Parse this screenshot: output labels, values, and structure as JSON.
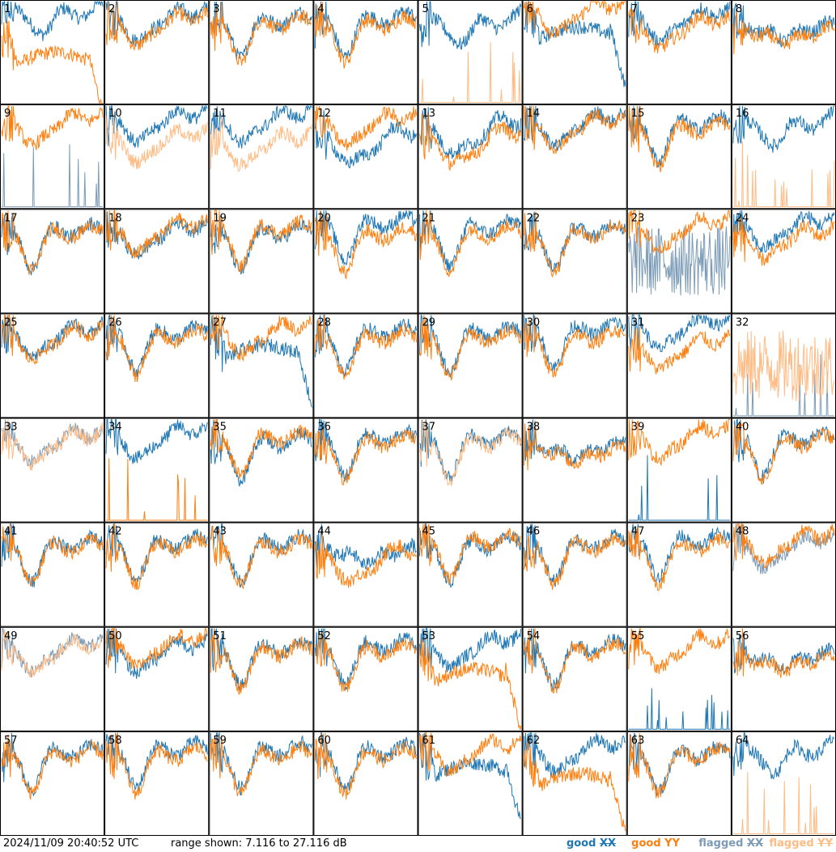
{
  "timestamp": "2024/11/09 20:40:52 UTC",
  "range": {
    "prefix": "range shown:",
    "min": "7.116",
    "sep": "to",
    "max": "27.116",
    "unit": "dB",
    "min_db": 7.116,
    "max_db": 27.116
  },
  "legend": {
    "good_xx": {
      "word": "good",
      "pol": "XX",
      "color": "#1f77b4"
    },
    "good_yy": {
      "word": "good",
      "pol": "YY",
      "color": "#ff7f0e"
    },
    "flagged_xx": {
      "word": "flagged",
      "pol": "XX",
      "color": "#7b9bb6"
    },
    "flagged_yy": {
      "word": "flagged",
      "pol": "YY",
      "color": "#ffbb84"
    }
  },
  "chart_data": {
    "type": "line",
    "layout": "8x8 grid of small-multiple spectra",
    "ylim_db": [
      7.116,
      27.116
    ],
    "grid": false,
    "legend_position": "bottom-right",
    "shapes": [
      "A",
      "B",
      "C",
      "D",
      "E",
      "F"
    ],
    "panels": [
      {
        "label": "1",
        "xx": {
          "s": "A",
          "o": 0.12,
          "st": "good"
        },
        "yy": {
          "s": "F",
          "o": -0.1,
          "st": "good"
        }
      },
      {
        "label": "2",
        "xx": {
          "s": "B",
          "o": 0.05,
          "st": "good"
        },
        "yy": {
          "s": "B",
          "o": 0.0,
          "st": "good"
        }
      },
      {
        "label": "3",
        "xx": {
          "s": "C",
          "o": 0.04,
          "st": "good"
        },
        "yy": {
          "s": "C",
          "o": 0.0,
          "st": "good"
        }
      },
      {
        "label": "4",
        "xx": {
          "s": "C",
          "o": 0.05,
          "st": "good"
        },
        "yy": {
          "s": "C",
          "o": 0.0,
          "st": "good"
        }
      },
      {
        "label": "5",
        "xx": {
          "s": "A",
          "o": 0.02,
          "st": "good"
        },
        "yy": {
          "s": "S",
          "o": 0.0,
          "st": "flagged"
        }
      },
      {
        "label": "6",
        "xx": {
          "s": "F",
          "o": 0.15,
          "st": "good"
        },
        "yy": {
          "s": "B",
          "o": 0.12,
          "st": "good"
        }
      },
      {
        "label": "7",
        "xx": {
          "s": "B",
          "o": 0.05,
          "st": "good"
        },
        "yy": {
          "s": "B",
          "o": -0.03,
          "st": "good"
        }
      },
      {
        "label": "8",
        "xx": {
          "s": "D",
          "o": 0.05,
          "st": "good"
        },
        "yy": {
          "s": "D",
          "o": 0.0,
          "st": "good"
        }
      },
      {
        "label": "9",
        "xx": {
          "s": "S",
          "o": 0.0,
          "st": "flagged"
        },
        "yy": {
          "s": "B",
          "o": 0.05,
          "st": "good"
        }
      },
      {
        "label": "10",
        "xx": {
          "s": "B",
          "o": 0.08,
          "st": "good"
        },
        "yy": {
          "s": "B",
          "o": -0.12,
          "st": "flagged"
        }
      },
      {
        "label": "11",
        "xx": {
          "s": "B",
          "o": 0.08,
          "st": "good"
        },
        "yy": {
          "s": "B",
          "o": -0.15,
          "st": "flagged"
        }
      },
      {
        "label": "12",
        "xx": {
          "s": "E",
          "o": 0.0,
          "st": "good"
        },
        "yy": {
          "s": "B",
          "o": 0.05,
          "st": "good"
        }
      },
      {
        "label": "13",
        "xx": {
          "s": "E",
          "o": 0.1,
          "st": "good"
        },
        "yy": {
          "s": "E",
          "o": 0.0,
          "st": "good"
        }
      },
      {
        "label": "14",
        "xx": {
          "s": "B",
          "o": 0.05,
          "st": "good"
        },
        "yy": {
          "s": "B",
          "o": 0.03,
          "st": "good"
        }
      },
      {
        "label": "15",
        "xx": {
          "s": "C",
          "o": 0.05,
          "st": "good"
        },
        "yy": {
          "s": "C",
          "o": 0.0,
          "st": "good"
        }
      },
      {
        "label": "16",
        "xx": {
          "s": "A",
          "o": 0.05,
          "st": "good"
        },
        "yy": {
          "s": "S",
          "o": 0.0,
          "st": "flagged"
        }
      },
      {
        "label": "17",
        "xx": {
          "s": "C",
          "o": 0.02,
          "st": "good"
        },
        "yy": {
          "s": "C",
          "o": 0.0,
          "st": "good"
        }
      },
      {
        "label": "18",
        "xx": {
          "s": "B",
          "o": 0.0,
          "st": "good"
        },
        "yy": {
          "s": "B",
          "o": 0.03,
          "st": "good"
        }
      },
      {
        "label": "19",
        "xx": {
          "s": "C",
          "o": 0.0,
          "st": "good"
        },
        "yy": {
          "s": "C",
          "o": 0.04,
          "st": "good"
        }
      },
      {
        "label": "20",
        "xx": {
          "s": "C",
          "o": 0.1,
          "st": "good"
        },
        "yy": {
          "s": "C",
          "o": -0.02,
          "st": "good"
        }
      },
      {
        "label": "21",
        "xx": {
          "s": "C",
          "o": 0.05,
          "st": "good"
        },
        "yy": {
          "s": "C",
          "o": 0.0,
          "st": "good"
        }
      },
      {
        "label": "22",
        "xx": {
          "s": "C",
          "o": 0.02,
          "st": "good"
        },
        "yy": {
          "s": "C",
          "o": 0.0,
          "st": "good"
        }
      },
      {
        "label": "23",
        "xx": {
          "s": "N",
          "o": 0.0,
          "st": "flagged"
        },
        "yy": {
          "s": "B",
          "o": 0.05,
          "st": "good"
        }
      },
      {
        "label": "24",
        "xx": {
          "s": "B",
          "o": 0.06,
          "st": "good"
        },
        "yy": {
          "s": "B",
          "o": -0.05,
          "st": "good"
        }
      },
      {
        "label": "25",
        "xx": {
          "s": "B",
          "o": 0.02,
          "st": "good"
        },
        "yy": {
          "s": "B",
          "o": 0.0,
          "st": "good"
        }
      },
      {
        "label": "26",
        "xx": {
          "s": "C",
          "o": 0.04,
          "st": "good"
        },
        "yy": {
          "s": "C",
          "o": 0.0,
          "st": "good"
        }
      },
      {
        "label": "27",
        "xx": {
          "s": "F",
          "o": 0.1,
          "st": "good"
        },
        "yy": {
          "s": "B",
          "o": 0.05,
          "st": "good"
        }
      },
      {
        "label": "28",
        "xx": {
          "s": "C",
          "o": 0.05,
          "st": "good"
        },
        "yy": {
          "s": "C",
          "o": 0.0,
          "st": "good"
        }
      },
      {
        "label": "29",
        "xx": {
          "s": "C",
          "o": 0.04,
          "st": "good"
        },
        "yy": {
          "s": "C",
          "o": 0.0,
          "st": "good"
        }
      },
      {
        "label": "30",
        "xx": {
          "s": "C",
          "o": 0.08,
          "st": "good"
        },
        "yy": {
          "s": "C",
          "o": 0.0,
          "st": "good"
        }
      },
      {
        "label": "31",
        "xx": {
          "s": "B",
          "o": 0.1,
          "st": "good"
        },
        "yy": {
          "s": "B",
          "o": -0.1,
          "st": "good"
        }
      },
      {
        "label": "32",
        "xx": {
          "s": "S",
          "o": 0.0,
          "st": "flagged"
        },
        "yy": {
          "s": "N",
          "o": 0.05,
          "st": "flagged"
        }
      },
      {
        "label": "33",
        "xx": {
          "s": "B",
          "o": 0.02,
          "st": "flagged"
        },
        "yy": {
          "s": "B",
          "o": 0.0,
          "st": "flagged"
        }
      },
      {
        "label": "34",
        "xx": {
          "s": "B",
          "o": 0.05,
          "st": "good"
        },
        "yy": {
          "s": "S",
          "o": 0.0,
          "st": "good"
        }
      },
      {
        "label": "35",
        "xx": {
          "s": "C",
          "o": 0.0,
          "st": "good"
        },
        "yy": {
          "s": "C",
          "o": 0.04,
          "st": "good"
        }
      },
      {
        "label": "36",
        "xx": {
          "s": "C",
          "o": 0.04,
          "st": "good"
        },
        "yy": {
          "s": "C",
          "o": 0.0,
          "st": "good"
        }
      },
      {
        "label": "37",
        "xx": {
          "s": "C",
          "o": 0.03,
          "st": "good"
        },
        "yy": {
          "s": "C",
          "o": 0.0,
          "st": "flagged"
        }
      },
      {
        "label": "38",
        "xx": {
          "s": "D",
          "o": 0.04,
          "st": "good"
        },
        "yy": {
          "s": "D",
          "o": 0.0,
          "st": "good"
        }
      },
      {
        "label": "39",
        "xx": {
          "s": "S",
          "o": 0.0,
          "st": "good"
        },
        "yy": {
          "s": "B",
          "o": 0.05,
          "st": "good"
        }
      },
      {
        "label": "40",
        "xx": {
          "s": "C",
          "o": 0.03,
          "st": "good"
        },
        "yy": {
          "s": "C",
          "o": 0.0,
          "st": "good"
        }
      },
      {
        "label": "41",
        "xx": {
          "s": "C",
          "o": 0.02,
          "st": "good"
        },
        "yy": {
          "s": "C",
          "o": 0.0,
          "st": "good"
        }
      },
      {
        "label": "42",
        "xx": {
          "s": "C",
          "o": 0.03,
          "st": "good"
        },
        "yy": {
          "s": "C",
          "o": 0.0,
          "st": "good"
        }
      },
      {
        "label": "43",
        "xx": {
          "s": "C",
          "o": 0.03,
          "st": "good"
        },
        "yy": {
          "s": "C",
          "o": 0.0,
          "st": "good"
        }
      },
      {
        "label": "44",
        "xx": {
          "s": "D",
          "o": 0.04,
          "st": "good"
        },
        "yy": {
          "s": "E",
          "o": 0.0,
          "st": "good"
        }
      },
      {
        "label": "45",
        "xx": {
          "s": "C",
          "o": 0.02,
          "st": "good"
        },
        "yy": {
          "s": "C",
          "o": 0.05,
          "st": "good"
        }
      },
      {
        "label": "46",
        "xx": {
          "s": "C",
          "o": 0.03,
          "st": "good"
        },
        "yy": {
          "s": "C",
          "o": 0.0,
          "st": "good"
        }
      },
      {
        "label": "47",
        "xx": {
          "s": "C",
          "o": 0.06,
          "st": "good"
        },
        "yy": {
          "s": "C",
          "o": 0.0,
          "st": "good"
        }
      },
      {
        "label": "48",
        "xx": {
          "s": "B",
          "o": 0.0,
          "st": "flagged"
        },
        "yy": {
          "s": "B",
          "o": 0.05,
          "st": "good"
        }
      },
      {
        "label": "49",
        "xx": {
          "s": "B",
          "o": 0.02,
          "st": "flagged"
        },
        "yy": {
          "s": "B",
          "o": 0.0,
          "st": "flagged"
        }
      },
      {
        "label": "50",
        "xx": {
          "s": "B",
          "o": 0.0,
          "st": "good"
        },
        "yy": {
          "s": "B",
          "o": 0.06,
          "st": "good"
        }
      },
      {
        "label": "51",
        "xx": {
          "s": "C",
          "o": 0.03,
          "st": "good"
        },
        "yy": {
          "s": "C",
          "o": 0.0,
          "st": "good"
        }
      },
      {
        "label": "52",
        "xx": {
          "s": "C",
          "o": 0.05,
          "st": "good"
        },
        "yy": {
          "s": "C",
          "o": 0.0,
          "st": "good"
        }
      },
      {
        "label": "53",
        "xx": {
          "s": "B",
          "o": 0.05,
          "st": "good"
        },
        "yy": {
          "s": "F",
          "o": 0.0,
          "st": "good"
        }
      },
      {
        "label": "54",
        "xx": {
          "s": "C",
          "o": 0.03,
          "st": "good"
        },
        "yy": {
          "s": "C",
          "o": 0.0,
          "st": "good"
        }
      },
      {
        "label": "55",
        "xx": {
          "s": "S",
          "o": 0.0,
          "st": "good"
        },
        "yy": {
          "s": "B",
          "o": 0.05,
          "st": "good"
        }
      },
      {
        "label": "56",
        "xx": {
          "s": "D",
          "o": 0.04,
          "st": "good"
        },
        "yy": {
          "s": "D",
          "o": 0.0,
          "st": "good"
        }
      },
      {
        "label": "57",
        "xx": {
          "s": "C",
          "o": 0.03,
          "st": "good"
        },
        "yy": {
          "s": "C",
          "o": 0.0,
          "st": "good"
        }
      },
      {
        "label": "58",
        "xx": {
          "s": "C",
          "o": 0.06,
          "st": "good"
        },
        "yy": {
          "s": "C",
          "o": 0.0,
          "st": "good"
        }
      },
      {
        "label": "59",
        "xx": {
          "s": "C",
          "o": 0.05,
          "st": "good"
        },
        "yy": {
          "s": "C",
          "o": 0.0,
          "st": "good"
        }
      },
      {
        "label": "60",
        "xx": {
          "s": "C",
          "o": 0.04,
          "st": "good"
        },
        "yy": {
          "s": "C",
          "o": 0.0,
          "st": "good"
        }
      },
      {
        "label": "61",
        "xx": {
          "s": "F",
          "o": 0.1,
          "st": "good"
        },
        "yy": {
          "s": "B",
          "o": 0.05,
          "st": "good"
        }
      },
      {
        "label": "62",
        "xx": {
          "s": "B",
          "o": 0.05,
          "st": "good"
        },
        "yy": {
          "s": "F",
          "o": 0.0,
          "st": "good"
        }
      },
      {
        "label": "63",
        "xx": {
          "s": "C",
          "o": 0.02,
          "st": "good"
        },
        "yy": {
          "s": "C",
          "o": 0.0,
          "st": "good"
        }
      },
      {
        "label": "64",
        "xx": {
          "s": "A",
          "o": 0.05,
          "st": "good"
        },
        "yy": {
          "s": "S",
          "o": 0.0,
          "st": "flagged"
        }
      }
    ]
  }
}
